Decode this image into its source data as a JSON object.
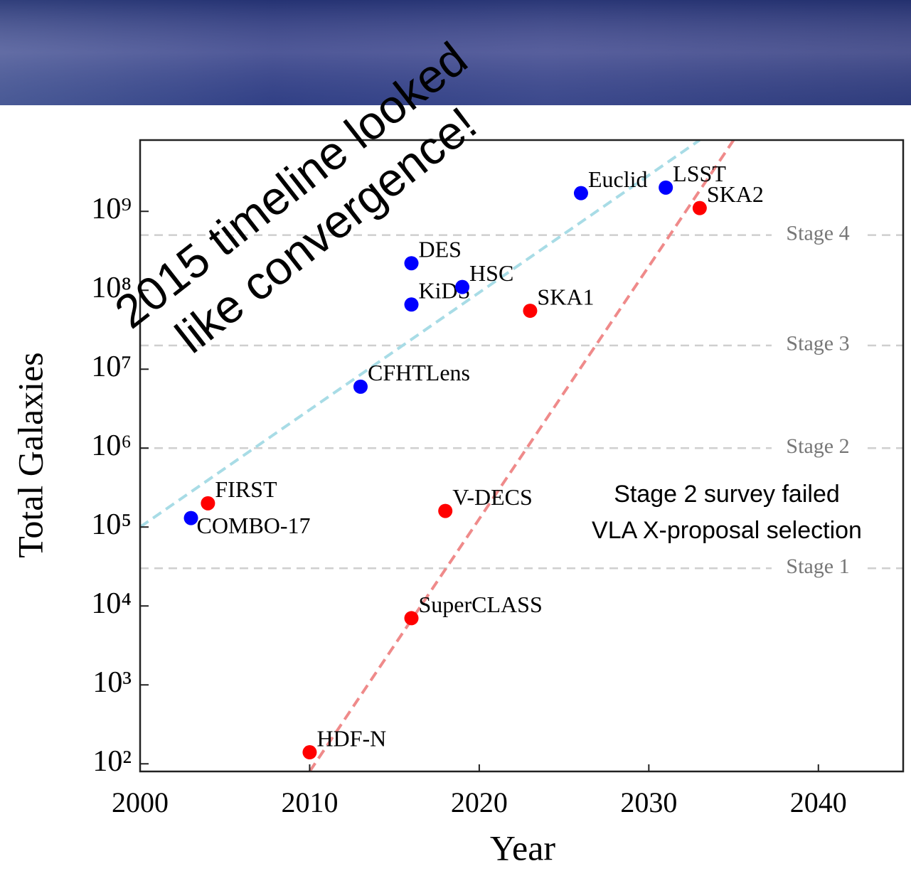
{
  "chart_data": {
    "type": "scatter",
    "x_label": "Year",
    "y_label": "Total Galaxies",
    "log_y": true,
    "xlim": [
      2000,
      2045
    ],
    "xticks": [
      2000,
      2010,
      2020,
      2030,
      2040
    ],
    "ylim": [
      80,
      8000000000
    ],
    "yticks": [
      {
        "value": 100,
        "label": "10²"
      },
      {
        "value": 1000,
        "label": "10³"
      },
      {
        "value": 10000,
        "label": "10⁴"
      },
      {
        "value": 100000,
        "label": "10⁵"
      },
      {
        "value": 1000000,
        "label": "10⁶"
      },
      {
        "value": 10000000,
        "label": "10⁷"
      },
      {
        "value": 100000000,
        "label": "10⁸"
      },
      {
        "value": 1000000000,
        "label": "10⁹"
      }
    ],
    "series": [
      {
        "color": "#0000ff",
        "x": [
          2003,
          2013,
          2016,
          2016,
          2019,
          2026,
          2031
        ],
        "values": [
          130000,
          6000000,
          220000000,
          66000000,
          110000000,
          1700000000,
          2000000000
        ],
        "labels": [
          "COMBO-17",
          "CFHTLens",
          "DES",
          "KiDS",
          "HSC",
          "Euclid",
          "LSST"
        ]
      },
      {
        "color": "#ff0000",
        "x": [
          2004,
          2010,
          2016,
          2018,
          2023,
          2033
        ],
        "values": [
          200000,
          140,
          7000,
          160000,
          55000000,
          1100000000
        ],
        "labels": [
          "FIRST",
          "HDF-N",
          "SuperCLASS",
          "V-DECS",
          "SKA1",
          "SKA2"
        ]
      }
    ],
    "trend_lines": [
      {
        "color": "#a8dce6",
        "x": [
          2000,
          2033
        ],
        "values": [
          100000,
          8000000000
        ]
      },
      {
        "color": "#ef8a8a",
        "x": [
          2010,
          2035
        ],
        "values": [
          80,
          8000000000
        ]
      }
    ],
    "reference_lines": [
      {
        "value": 500000000,
        "label": "Stage 4"
      },
      {
        "value": 20000000,
        "label": "Stage 3"
      },
      {
        "value": 1000000,
        "label": "Stage 2"
      },
      {
        "value": 30000,
        "label": "Stage 1"
      }
    ],
    "annotations": [
      "2015 timeline looked",
      "like convergence!",
      "Stage 2 survey failed",
      "VLA X-proposal selection"
    ]
  }
}
